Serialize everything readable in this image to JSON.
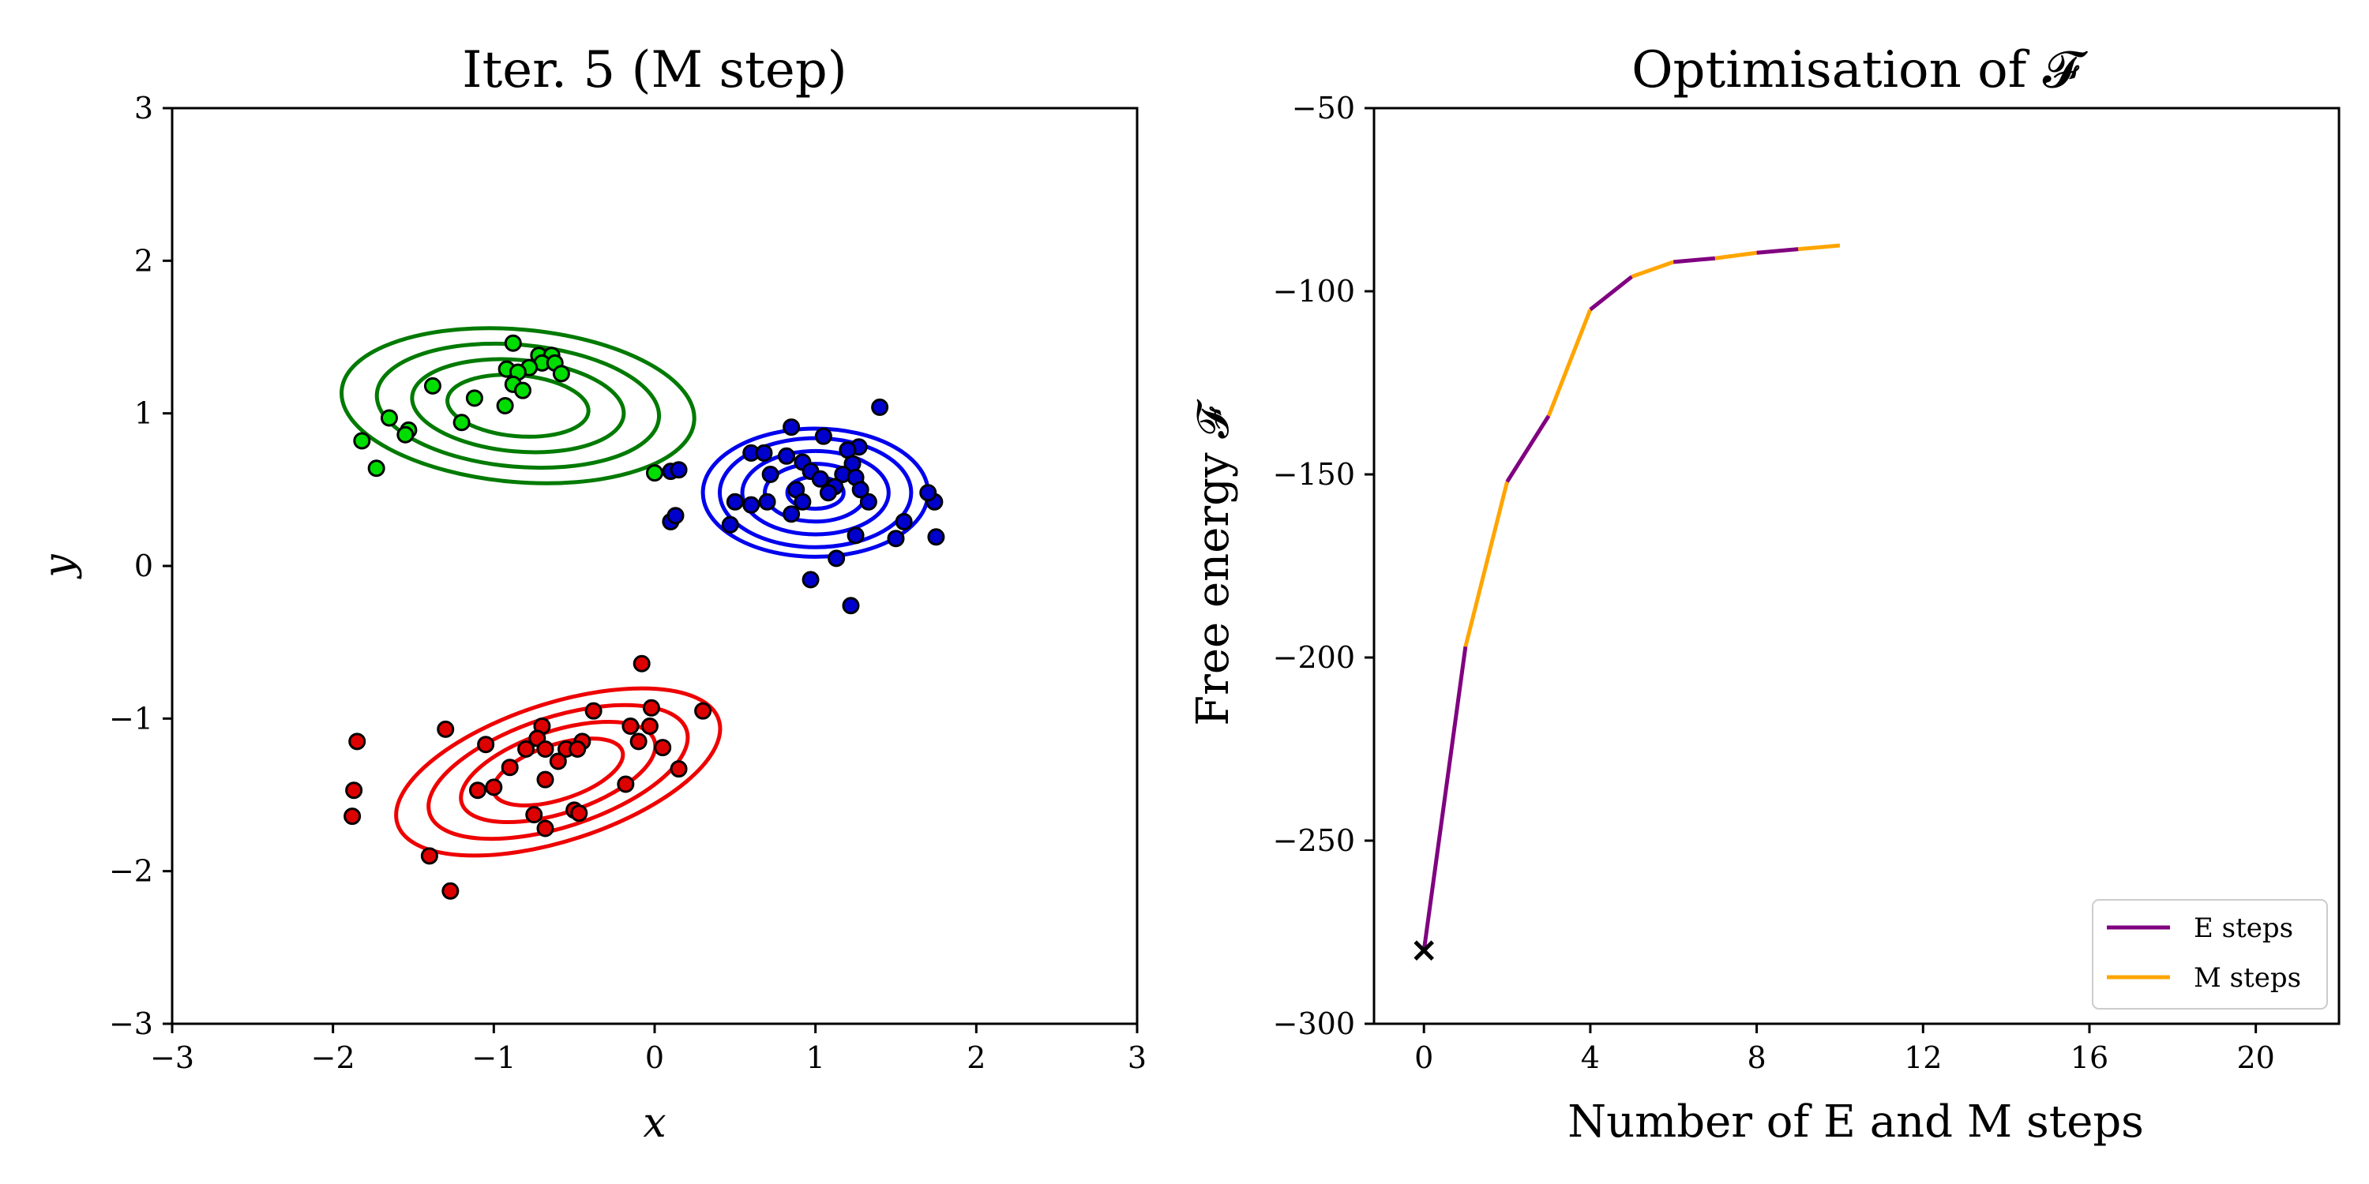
{
  "chart_data": [
    {
      "type": "scatter",
      "title": "Iter. 5 (M step)",
      "xlabel": "x",
      "ylabel": "y",
      "xlim": [
        -3,
        3
      ],
      "ylim": [
        -3,
        3
      ],
      "xticks": [
        "−3",
        "−2",
        "−1",
        "0",
        "1",
        "2",
        "3"
      ],
      "yticks": [
        "−3",
        "−2",
        "−1",
        "0",
        "1",
        "2",
        "3"
      ],
      "clusters": [
        {
          "name": "green",
          "color": "#00dd00",
          "contour_color": "#007a00",
          "center": [
            -0.85,
            1.05
          ],
          "axes": [
            1.1,
            0.5
          ],
          "angle_deg": -5,
          "contour_levels": [
            0.4,
            0.6,
            0.8,
            1.0
          ],
          "points": [
            [
              -0.88,
              1.46
            ],
            [
              -0.72,
              1.38
            ],
            [
              -0.64,
              1.38
            ],
            [
              -0.7,
              1.33
            ],
            [
              -0.62,
              1.33
            ],
            [
              -0.78,
              1.3
            ],
            [
              -0.92,
              1.29
            ],
            [
              -0.85,
              1.27
            ],
            [
              -0.58,
              1.26
            ],
            [
              -0.88,
              1.19
            ],
            [
              -0.82,
              1.15
            ],
            [
              -1.38,
              1.18
            ],
            [
              -1.12,
              1.1
            ],
            [
              -0.93,
              1.05
            ],
            [
              -1.65,
              0.97
            ],
            [
              -1.2,
              0.94
            ],
            [
              -1.53,
              0.89
            ],
            [
              -1.55,
              0.86
            ],
            [
              -1.82,
              0.82
            ],
            [
              -1.73,
              0.64
            ],
            [
              0.0,
              0.61
            ]
          ]
        },
        {
          "name": "blue",
          "color": "#0000cc",
          "contour_color": "#0000ee",
          "center": [
            1.0,
            0.48
          ],
          "axes": [
            0.7,
            0.42
          ],
          "angle_deg": 0,
          "contour_levels": [
            0.25,
            0.45,
            0.65,
            0.85,
            1.0
          ],
          "points": [
            [
              1.4,
              1.04
            ],
            [
              0.85,
              0.91
            ],
            [
              1.05,
              0.85
            ],
            [
              1.27,
              0.78
            ],
            [
              1.2,
              0.76
            ],
            [
              0.6,
              0.74
            ],
            [
              0.68,
              0.74
            ],
            [
              0.82,
              0.72
            ],
            [
              0.92,
              0.68
            ],
            [
              1.23,
              0.67
            ],
            [
              0.97,
              0.62
            ],
            [
              0.72,
              0.6
            ],
            [
              1.17,
              0.6
            ],
            [
              1.25,
              0.58
            ],
            [
              1.03,
              0.57
            ],
            [
              1.12,
              0.52
            ],
            [
              0.88,
              0.5
            ],
            [
              1.08,
              0.48
            ],
            [
              0.5,
              0.42
            ],
            [
              0.7,
              0.42
            ],
            [
              0.92,
              0.42
            ],
            [
              0.6,
              0.4
            ],
            [
              1.33,
              0.42
            ],
            [
              1.28,
              0.5
            ],
            [
              1.74,
              0.42
            ],
            [
              1.7,
              0.48
            ],
            [
              0.85,
              0.34
            ],
            [
              1.55,
              0.29
            ],
            [
              0.47,
              0.27
            ],
            [
              1.25,
              0.2
            ],
            [
              1.5,
              0.18
            ],
            [
              1.75,
              0.19
            ],
            [
              1.13,
              0.05
            ],
            [
              0.97,
              -0.09
            ],
            [
              1.22,
              -0.26
            ],
            [
              0.1,
              0.29
            ],
            [
              0.13,
              0.33
            ],
            [
              0.1,
              0.62
            ],
            [
              0.15,
              0.63
            ]
          ]
        },
        {
          "name": "red",
          "color": "#dd0000",
          "contour_color": "#ee0000",
          "center": [
            -0.6,
            -1.35
          ],
          "axes": [
            1.05,
            0.45
          ],
          "angle_deg": 18,
          "contour_levels": [
            0.4,
            0.6,
            0.8,
            1.0
          ],
          "points": [
            [
              -0.08,
              -0.64
            ],
            [
              -0.38,
              -0.95
            ],
            [
              -0.02,
              -0.93
            ],
            [
              0.3,
              -0.95
            ],
            [
              -0.7,
              -1.05
            ],
            [
              -0.15,
              -1.05
            ],
            [
              -0.03,
              -1.05
            ],
            [
              -1.3,
              -1.07
            ],
            [
              -0.45,
              -1.15
            ],
            [
              -0.1,
              -1.15
            ],
            [
              -1.05,
              -1.17
            ],
            [
              -0.73,
              -1.13
            ],
            [
              -0.8,
              -1.2
            ],
            [
              -0.68,
              -1.2
            ],
            [
              -0.55,
              -1.2
            ],
            [
              -0.48,
              -1.2
            ],
            [
              0.05,
              -1.19
            ],
            [
              -0.6,
              -1.28
            ],
            [
              -0.9,
              -1.32
            ],
            [
              -0.68,
              -1.4
            ],
            [
              -1.0,
              -1.45
            ],
            [
              -1.1,
              -1.47
            ],
            [
              -0.18,
              -1.43
            ],
            [
              0.15,
              -1.33
            ],
            [
              -0.75,
              -1.63
            ],
            [
              -0.5,
              -1.6
            ],
            [
              -0.47,
              -1.62
            ],
            [
              -0.68,
              -1.72
            ],
            [
              -1.85,
              -1.15
            ],
            [
              -1.87,
              -1.47
            ],
            [
              -1.88,
              -1.64
            ],
            [
              -1.4,
              -1.9
            ],
            [
              -1.27,
              -2.13
            ]
          ]
        }
      ]
    },
    {
      "type": "line",
      "title": "Optimisation of 𝓕",
      "xlabel": "Number of E and M steps",
      "ylabel": "Free energy 𝓕",
      "xlim": [
        -1.2,
        22
      ],
      "ylim": [
        -300,
        -50
      ],
      "xticks": [
        0,
        4,
        8,
        12,
        16,
        20
      ],
      "xtick_labels": [
        "0",
        "4",
        "8",
        "12",
        "16",
        "20"
      ],
      "yticks": [
        -50,
        -100,
        -150,
        -200,
        -250,
        -300
      ],
      "ytick_labels": [
        "−50",
        "−100",
        "−150",
        "−200",
        "−250",
        "−300"
      ],
      "x": [
        0,
        1,
        2,
        3,
        4,
        5,
        6,
        7,
        8,
        9,
        10
      ],
      "y": [
        -280,
        -197,
        -152,
        -134,
        -105,
        -96,
        -92,
        -91,
        -89.5,
        -88.5,
        -87.5
      ],
      "start_marker": {
        "x": 0,
        "y": -280,
        "symbol": "×"
      },
      "series": [
        {
          "name": "E steps",
          "color": "#800080"
        },
        {
          "name": "M steps",
          "color": "#ffa500"
        }
      ],
      "legend": {
        "position": "bottom-right",
        "entries": [
          "E steps",
          "M steps"
        ]
      }
    }
  ]
}
